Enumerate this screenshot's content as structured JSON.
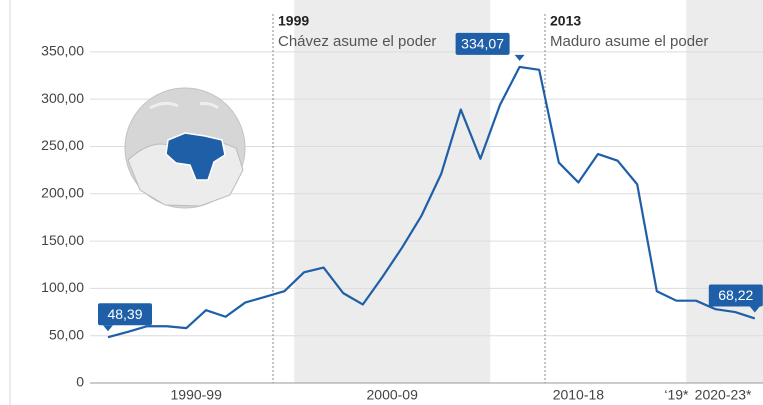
{
  "chart_data": {
    "type": "line",
    "categories": [
      null,
      null,
      null,
      null,
      null,
      null,
      null,
      null,
      null,
      null,
      null,
      null,
      null,
      null,
      null,
      null,
      null,
      null,
      null,
      null,
      null,
      null,
      null,
      null,
      null,
      null,
      null,
      null,
      null,
      null,
      null,
      null,
      null,
      null
    ],
    "series": [
      {
        "name": null,
        "color": "#1f5fa8",
        "values": [
          48.39,
          54,
          60,
          60,
          58,
          77,
          70,
          85,
          91,
          97,
          117,
          122,
          95,
          83,
          112,
          143,
          177,
          221,
          289,
          237,
          294,
          334.07,
          331,
          233,
          212,
          242,
          235,
          210,
          97,
          87,
          87,
          78,
          75,
          68.22
        ],
        "value_labels": [
          "48,39",
          null,
          null,
          null,
          null,
          null,
          null,
          null,
          null,
          null,
          null,
          null,
          null,
          null,
          null,
          null,
          null,
          null,
          null,
          null,
          null,
          "334,07",
          null,
          null,
          null,
          null,
          null,
          null,
          null,
          null,
          null,
          null,
          null,
          "68,22"
        ]
      }
    ],
    "ylim": [
      0,
      390
    ],
    "yticks": [
      0,
      {
        "value": 50,
        "label": "50,00"
      },
      {
        "value": 100,
        "label": "100,00"
      },
      {
        "value": 150,
        "label": "150,00"
      },
      {
        "value": 200,
        "label": "200,00"
      },
      {
        "value": 250,
        "label": "250,00"
      },
      {
        "value": 300,
        "label": "300,00"
      },
      {
        "value": 350,
        "label": "350,00"
      }
    ],
    "grid": true,
    "periods": [
      {
        "label": "1990-99",
        "count": 10,
        "shaded": false
      },
      {
        "label": "2000-09",
        "count": 10,
        "shaded": true
      },
      {
        "label": "2010-18",
        "count": 9,
        "shaded": false
      },
      {
        "label": "‘19*",
        "count": 1,
        "shaded": false
      },
      {
        "label": "2020-23*",
        "count": 4,
        "shaded": true
      }
    ],
    "annotations": [
      {
        "year": "1999",
        "text": "Chávez asume el poder"
      },
      {
        "year": "2013",
        "text": "Maduro asume el poder"
      }
    ]
  }
}
